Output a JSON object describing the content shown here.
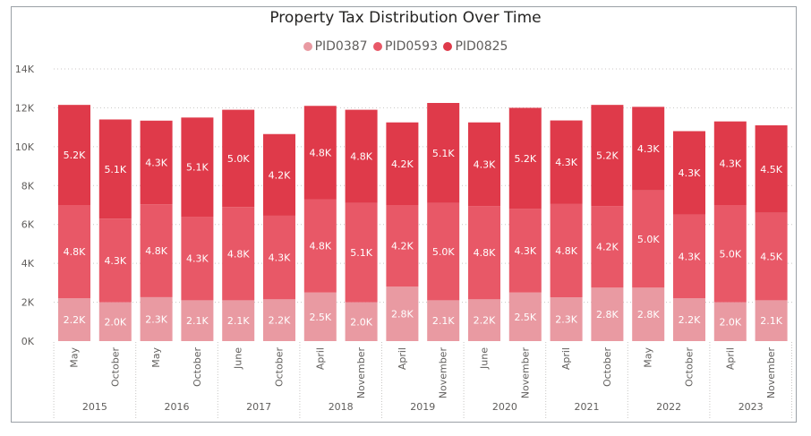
{
  "chart_data": {
    "type": "bar",
    "stacked": true,
    "title": "Property Tax Distribution Over Time",
    "legend": {
      "position": "top-center"
    },
    "grid": true,
    "ylim": [
      0,
      14000
    ],
    "yticks": [
      {
        "value": 0,
        "label": "0K"
      },
      {
        "value": 2000,
        "label": "2K"
      },
      {
        "value": 4000,
        "label": "4K"
      },
      {
        "value": 6000,
        "label": "6K"
      },
      {
        "value": 8000,
        "label": "8K"
      },
      {
        "value": 10000,
        "label": "10K"
      },
      {
        "value": 12000,
        "label": "12K"
      },
      {
        "value": 14000,
        "label": "14K"
      }
    ],
    "categories": [
      {
        "month": "May",
        "year": "2015"
      },
      {
        "month": "October",
        "year": "2015"
      },
      {
        "month": "May",
        "year": "2016"
      },
      {
        "month": "October",
        "year": "2016"
      },
      {
        "month": "June",
        "year": "2017"
      },
      {
        "month": "October",
        "year": "2017"
      },
      {
        "month": "April",
        "year": "2018"
      },
      {
        "month": "November",
        "year": "2018"
      },
      {
        "month": "April",
        "year": "2019"
      },
      {
        "month": "November",
        "year": "2019"
      },
      {
        "month": "June",
        "year": "2020"
      },
      {
        "month": "November",
        "year": "2020"
      },
      {
        "month": "April",
        "year": "2021"
      },
      {
        "month": "October",
        "year": "2021"
      },
      {
        "month": "May",
        "year": "2022"
      },
      {
        "month": "October",
        "year": "2022"
      },
      {
        "month": "April",
        "year": "2023"
      },
      {
        "month": "November",
        "year": "2023"
      }
    ],
    "years": [
      "2015",
      "2016",
      "2017",
      "2018",
      "2019",
      "2020",
      "2021",
      "2022",
      "2023"
    ],
    "series": [
      {
        "name": "PID0387",
        "color": "#e99aa2",
        "values": [
          2200,
          2000,
          2260,
          2100,
          2100,
          2150,
          2500,
          2000,
          2800,
          2100,
          2150,
          2500,
          2250,
          2750,
          2750,
          2200,
          2000,
          2100
        ],
        "labels": [
          "2.2K",
          "2.0K",
          "2.3K",
          "2.1K",
          "2.1K",
          "2.2K",
          "2.5K",
          "2.0K",
          "2.8K",
          "2.1K",
          "2.2K",
          "2.5K",
          "2.3K",
          "2.8K",
          "2.8K",
          "2.2K",
          "2.0K",
          "2.1K"
        ]
      },
      {
        "name": "PID0593",
        "color": "#e85867",
        "values": [
          4800,
          4300,
          4780,
          4300,
          4800,
          4300,
          4800,
          5100,
          4200,
          5000,
          4800,
          4300,
          4800,
          4200,
          5000,
          4300,
          5000,
          4500
        ],
        "labels": [
          "4.8K",
          "4.3K",
          "4.8K",
          "4.3K",
          "4.8K",
          "4.3K",
          "4.8K",
          "5.1K",
          "4.2K",
          "5.0K",
          "4.8K",
          "4.3K",
          "4.8K",
          "4.2K",
          "5.0K",
          "4.3K",
          "5.0K",
          "4.5K"
        ]
      },
      {
        "name": "PID0825",
        "color": "#df3a4a",
        "values": [
          5150,
          5100,
          4300,
          5100,
          5000,
          4200,
          4800,
          4800,
          4250,
          5150,
          4300,
          5200,
          4300,
          5200,
          4300,
          4300,
          4300,
          4500
        ],
        "labels": [
          "5.2K",
          "5.1K",
          "4.3K",
          "5.1K",
          "5.0K",
          "4.2K",
          "4.8K",
          "4.8K",
          "4.2K",
          "5.1K",
          "4.3K",
          "5.2K",
          "4.3K",
          "5.2K",
          "4.3K",
          "4.3K",
          "4.3K",
          "4.5K"
        ]
      }
    ]
  }
}
